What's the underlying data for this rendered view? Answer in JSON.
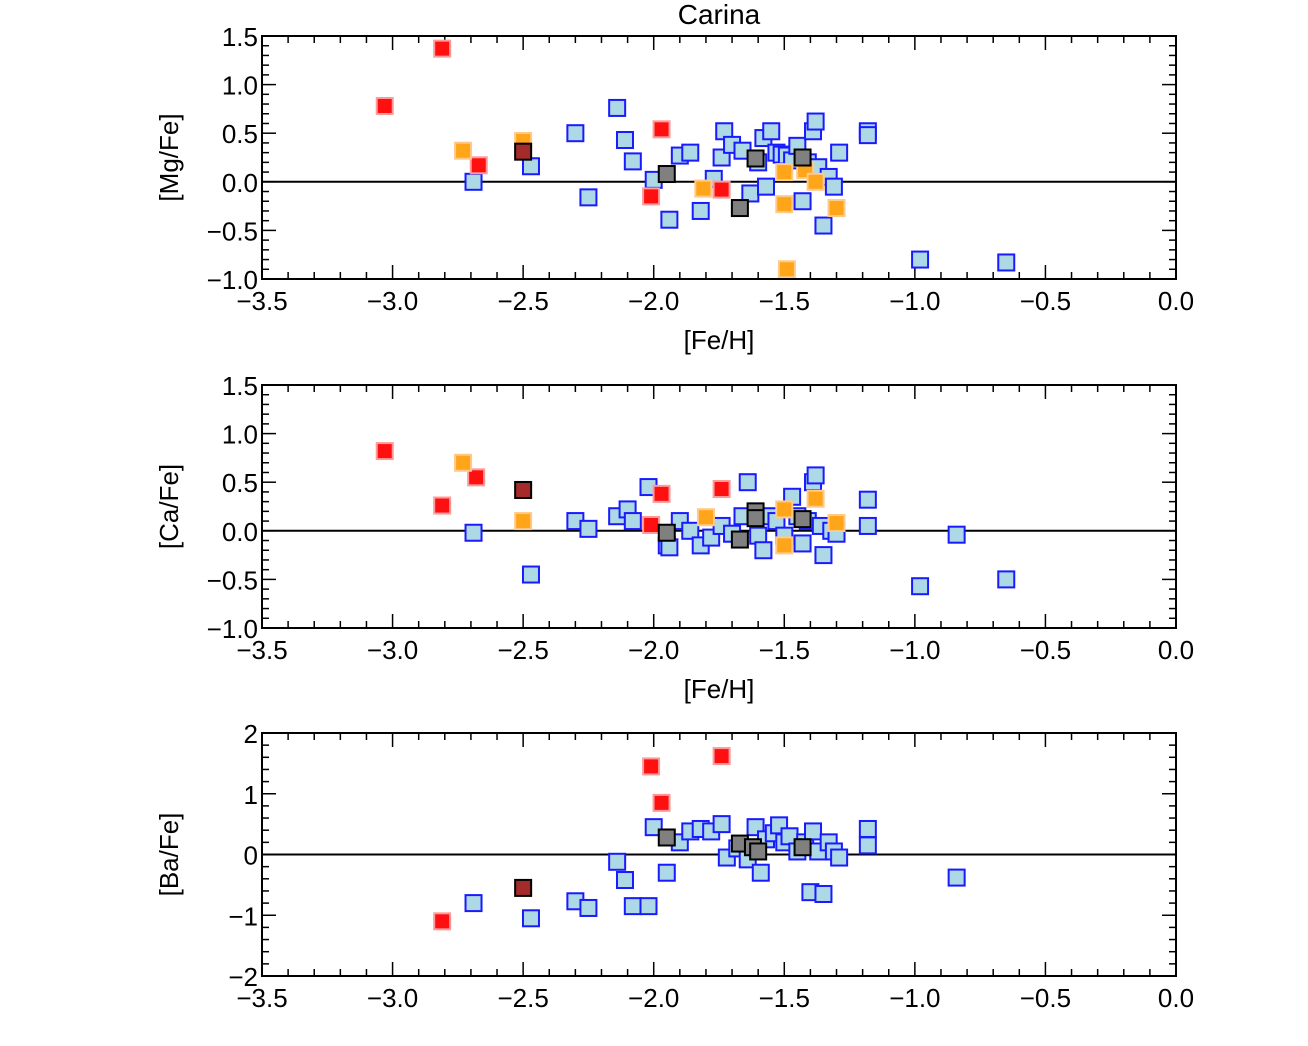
{
  "title": "Carina",
  "colors": {
    "blue_face": "#add8e6",
    "blue_edge": "#1a1aff",
    "red_face": "#ff1010",
    "red_edge": "#ff9a9a",
    "orange_face": "#ffa51a",
    "orange_edge": "#ffc98a",
    "darkred_face": "#a52a2a",
    "darkred_edge": "#000000",
    "gray_face": "#808080",
    "gray_edge": "#000000"
  },
  "chart_data": [
    {
      "type": "scatter",
      "id": "mg",
      "xlabel": "[Fe/H]",
      "ylabel": "[Mg/Fe]",
      "xlim": [
        -3.5,
        0.0
      ],
      "ylim": [
        -1.0,
        1.5
      ],
      "xticks": [
        -3.5,
        -3.0,
        -2.5,
        -2.0,
        -1.5,
        -1.0,
        -0.5,
        0.0
      ],
      "xtick_labels": [
        "−3.5",
        "−3.0",
        "−2.5",
        "−2.0",
        "−1.5",
        "−1.0",
        "−0.5",
        "0.0"
      ],
      "yticks": [
        -1.0,
        -0.5,
        0.0,
        0.5,
        1.0,
        1.5
      ],
      "ytick_labels": [
        "−1.0",
        "−0.5",
        "0.0",
        "0.5",
        "1.0",
        "1.5"
      ],
      "reference_line": 0,
      "series": [
        {
          "name": "blue",
          "points": [
            [
              -2.69,
              0.0
            ],
            [
              -2.47,
              0.16
            ],
            [
              -2.3,
              0.5
            ],
            [
              -2.25,
              -0.16
            ],
            [
              -2.14,
              0.76
            ],
            [
              -2.11,
              0.43
            ],
            [
              -2.08,
              0.21
            ],
            [
              -2.0,
              0.02
            ],
            [
              -1.94,
              -0.39
            ],
            [
              -1.9,
              0.27
            ],
            [
              -1.86,
              0.3
            ],
            [
              -1.82,
              -0.3
            ],
            [
              -1.77,
              0.03
            ],
            [
              -1.74,
              0.25
            ],
            [
              -1.73,
              0.52
            ],
            [
              -1.7,
              0.38
            ],
            [
              -1.66,
              0.32
            ],
            [
              -1.63,
              -0.12
            ],
            [
              -1.6,
              0.2
            ],
            [
              -1.58,
              0.45
            ],
            [
              -1.57,
              -0.05
            ],
            [
              -1.55,
              0.52
            ],
            [
              -1.53,
              0.3
            ],
            [
              -1.51,
              0.28
            ],
            [
              -1.49,
              0.27
            ],
            [
              -1.47,
              0.22
            ],
            [
              -1.45,
              0.37
            ],
            [
              -1.43,
              -0.2
            ],
            [
              -1.41,
              0.2
            ],
            [
              -1.39,
              0.52
            ],
            [
              -1.38,
              0.62
            ],
            [
              -1.37,
              0.15
            ],
            [
              -1.35,
              -0.45
            ],
            [
              -1.33,
              0.05
            ],
            [
              -1.31,
              -0.05
            ],
            [
              -1.29,
              0.3
            ],
            [
              -1.18,
              0.52
            ],
            [
              -1.18,
              0.48
            ],
            [
              -0.98,
              -0.8
            ],
            [
              -0.65,
              -0.83
            ]
          ]
        },
        {
          "name": "red",
          "points": [
            [
              -3.03,
              0.78
            ],
            [
              -2.81,
              1.37
            ],
            [
              -2.67,
              0.17
            ],
            [
              -1.97,
              0.54
            ],
            [
              -2.01,
              -0.15
            ],
            [
              -1.74,
              -0.08
            ]
          ]
        },
        {
          "name": "orange",
          "points": [
            [
              -2.73,
              0.32
            ],
            [
              -2.5,
              0.42
            ],
            [
              -1.81,
              -0.07
            ],
            [
              -1.5,
              0.1
            ],
            [
              -1.5,
              -0.23
            ],
            [
              -1.49,
              -0.9
            ],
            [
              -1.42,
              0.12
            ],
            [
              -1.38,
              0.0
            ],
            [
              -1.3,
              -0.27
            ]
          ]
        },
        {
          "name": "darkred",
          "points": [
            [
              -2.5,
              0.31
            ]
          ]
        },
        {
          "name": "gray",
          "points": [
            [
              -1.95,
              0.08
            ],
            [
              -1.67,
              -0.27
            ],
            [
              -1.61,
              0.24
            ],
            [
              -1.43,
              0.25
            ]
          ]
        }
      ]
    },
    {
      "type": "scatter",
      "id": "ca",
      "xlabel": "[Fe/H]",
      "ylabel": "[Ca/Fe]",
      "xlim": [
        -3.5,
        0.0
      ],
      "ylim": [
        -1.0,
        1.5
      ],
      "xticks": [
        -3.5,
        -3.0,
        -2.5,
        -2.0,
        -1.5,
        -1.0,
        -0.5,
        0.0
      ],
      "xtick_labels": [
        "−3.5",
        "−3.0",
        "−2.5",
        "−2.0",
        "−1.5",
        "−1.0",
        "−0.5",
        "0.0"
      ],
      "yticks": [
        -1.0,
        -0.5,
        0.0,
        0.5,
        1.0,
        1.5
      ],
      "ytick_labels": [
        "−1.0",
        "−0.5",
        "0.0",
        "0.5",
        "1.0",
        "1.5"
      ],
      "reference_line": 0,
      "series": [
        {
          "name": "blue",
          "points": [
            [
              -2.69,
              -0.02
            ],
            [
              -2.47,
              -0.45
            ],
            [
              -2.3,
              0.1
            ],
            [
              -2.25,
              0.02
            ],
            [
              -2.14,
              0.15
            ],
            [
              -2.1,
              0.22
            ],
            [
              -2.08,
              0.1
            ],
            [
              -2.02,
              0.45
            ],
            [
              -1.95,
              -0.15
            ],
            [
              -1.94,
              -0.17
            ],
            [
              -1.9,
              0.1
            ],
            [
              -1.86,
              0.0
            ],
            [
              -1.82,
              -0.15
            ],
            [
              -1.78,
              -0.07
            ],
            [
              -1.74,
              0.05
            ],
            [
              -1.7,
              -0.03
            ],
            [
              -1.66,
              0.15
            ],
            [
              -1.64,
              0.5
            ],
            [
              -1.6,
              -0.05
            ],
            [
              -1.58,
              -0.2
            ],
            [
              -1.56,
              0.15
            ],
            [
              -1.53,
              0.1
            ],
            [
              -1.5,
              -0.05
            ],
            [
              -1.47,
              0.35
            ],
            [
              -1.45,
              0.15
            ],
            [
              -1.43,
              -0.13
            ],
            [
              -1.41,
              0.1
            ],
            [
              -1.39,
              0.5
            ],
            [
              -1.38,
              0.57
            ],
            [
              -1.36,
              0.05
            ],
            [
              -1.35,
              -0.25
            ],
            [
              -1.32,
              0.0
            ],
            [
              -1.3,
              -0.03
            ],
            [
              -1.18,
              0.32
            ],
            [
              -1.18,
              0.05
            ],
            [
              -0.98,
              -0.57
            ],
            [
              -0.84,
              -0.04
            ],
            [
              -0.65,
              -0.5
            ]
          ]
        },
        {
          "name": "red",
          "points": [
            [
              -3.03,
              0.82
            ],
            [
              -2.81,
              0.26
            ],
            [
              -2.68,
              0.55
            ],
            [
              -1.97,
              0.38
            ],
            [
              -2.01,
              0.06
            ],
            [
              -1.74,
              0.43
            ]
          ]
        },
        {
          "name": "orange",
          "points": [
            [
              -2.73,
              0.7
            ],
            [
              -2.5,
              0.1
            ],
            [
              -1.8,
              0.14
            ],
            [
              -1.5,
              0.22
            ],
            [
              -1.5,
              -0.15
            ],
            [
              -1.38,
              0.33
            ],
            [
              -1.3,
              0.08
            ]
          ]
        },
        {
          "name": "darkred",
          "points": [
            [
              -2.5,
              0.42
            ]
          ]
        },
        {
          "name": "gray",
          "points": [
            [
              -1.95,
              -0.02
            ],
            [
              -1.67,
              -0.09
            ],
            [
              -1.61,
              0.2
            ],
            [
              -1.61,
              0.13
            ],
            [
              -1.43,
              0.12
            ]
          ]
        }
      ]
    },
    {
      "type": "scatter",
      "id": "ba",
      "xlabel": "",
      "ylabel": "[Ba/Fe]",
      "xlim": [
        -3.5,
        0.0
      ],
      "ylim": [
        -2.0,
        2.0
      ],
      "xticks": [
        -3.5,
        -3.0,
        -2.5,
        -2.0,
        -1.5,
        -1.0,
        -0.5,
        0.0
      ],
      "xtick_labels": [
        "−3.5",
        "−3.0",
        "−2.5",
        "−2.0",
        "−1.5",
        "−1.0",
        "−0.5",
        "0.0"
      ],
      "yticks": [
        -2,
        -1,
        0,
        1,
        2
      ],
      "ytick_labels": [
        "−2",
        "−1",
        "0",
        "1",
        "2"
      ],
      "reference_line": 0,
      "series": [
        {
          "name": "blue",
          "points": [
            [
              -2.69,
              -0.8
            ],
            [
              -2.47,
              -1.05
            ],
            [
              -2.3,
              -0.77
            ],
            [
              -2.25,
              -0.88
            ],
            [
              -2.14,
              -0.12
            ],
            [
              -2.11,
              -0.42
            ],
            [
              -2.08,
              -0.85
            ],
            [
              -2.02,
              -0.85
            ],
            [
              -2.0,
              0.45
            ],
            [
              -1.95,
              -0.3
            ],
            [
              -1.9,
              0.2
            ],
            [
              -1.86,
              0.38
            ],
            [
              -1.82,
              0.42
            ],
            [
              -1.78,
              0.38
            ],
            [
              -1.74,
              0.5
            ],
            [
              -1.72,
              -0.05
            ],
            [
              -1.68,
              0.1
            ],
            [
              -1.64,
              -0.08
            ],
            [
              -1.61,
              0.45
            ],
            [
              -1.59,
              -0.3
            ],
            [
              -1.57,
              0.25
            ],
            [
              -1.54,
              0.35
            ],
            [
              -1.52,
              0.48
            ],
            [
              -1.5,
              0.2
            ],
            [
              -1.48,
              0.3
            ],
            [
              -1.45,
              0.05
            ],
            [
              -1.42,
              0.2
            ],
            [
              -1.4,
              -0.62
            ],
            [
              -1.39,
              0.38
            ],
            [
              -1.37,
              0.05
            ],
            [
              -1.35,
              -0.65
            ],
            [
              -1.33,
              0.2
            ],
            [
              -1.31,
              0.05
            ],
            [
              -1.29,
              -0.05
            ],
            [
              -1.18,
              0.42
            ],
            [
              -1.18,
              0.15
            ],
            [
              -0.84,
              -0.38
            ]
          ]
        },
        {
          "name": "red",
          "points": [
            [
              -2.81,
              -1.1
            ],
            [
              -2.01,
              1.45
            ],
            [
              -1.97,
              0.85
            ],
            [
              -1.74,
              1.62
            ]
          ]
        },
        {
          "name": "orange",
          "points": []
        },
        {
          "name": "darkred",
          "points": [
            [
              -2.5,
              -0.55
            ]
          ]
        },
        {
          "name": "gray",
          "points": [
            [
              -1.95,
              0.28
            ],
            [
              -1.67,
              0.18
            ],
            [
              -1.62,
              0.12
            ],
            [
              -1.6,
              0.05
            ],
            [
              -1.43,
              0.12
            ]
          ]
        }
      ]
    }
  ]
}
